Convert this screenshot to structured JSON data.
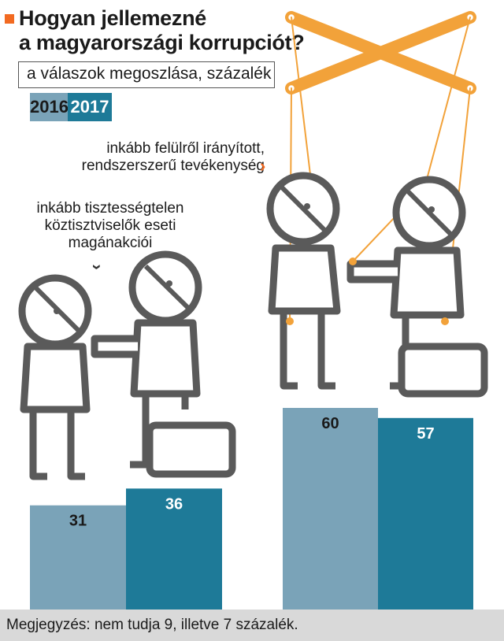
{
  "title_line1": "Hogyan jellemezné",
  "title_line2": "a magyarországi korrupciót?",
  "subtitle": "a válaszok megoszlása, százalék",
  "note": "Megjegyzés: nem tudja 9, illetve 7 százalék.",
  "chart_data": {
    "type": "bar",
    "title": "Hogyan jellemezné a magyarországi korrupciót?",
    "subtitle": "a válaszok megoszlása, százalék",
    "categories": [
      "inkább tisztességtelen köztisztviselők eseti magánakciói",
      "inkább felülről irányított, rendszerszerű tevékenység"
    ],
    "category_lines": [
      [
        "inkább tisztességtelen",
        "köztisztviselők eseti",
        "magánakciói"
      ],
      [
        "inkább felülről irányított,",
        "rendszerszerű tevékenység"
      ]
    ],
    "series": [
      {
        "name": "2016",
        "values": [
          31,
          60
        ],
        "color": "#7aa3b8"
      },
      {
        "name": "2017",
        "values": [
          36,
          57
        ],
        "color": "#1e7a98"
      }
    ],
    "ylim": [
      0,
      100
    ],
    "legend": "top-left",
    "grid": false
  },
  "colors": {
    "accent": "#f26a21",
    "figure": "#5a5a5a",
    "strings": "#f2a23a"
  }
}
